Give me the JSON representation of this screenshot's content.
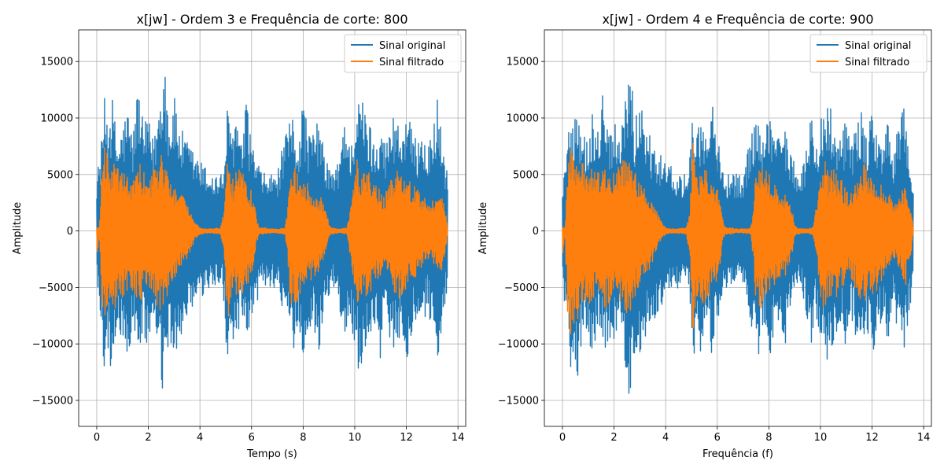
{
  "chart_data": [
    {
      "type": "line",
      "title": "x[jw] - Ordem 3 e Frequência de corte: 800",
      "xlabel": "Tempo (s)",
      "ylabel": "Amplitude",
      "xlim": [
        -0.7,
        14.3
      ],
      "ylim": [
        -17300,
        17800
      ],
      "xticks": [
        0,
        2,
        4,
        6,
        8,
        10,
        12,
        14
      ],
      "yticks": [
        -15000,
        -10000,
        -5000,
        0,
        5000,
        10000,
        15000
      ],
      "ytick_labels": [
        "−15000",
        "−10000",
        "−5000",
        "0",
        "5000",
        "10000",
        "15000"
      ],
      "grid": true,
      "legend_position": "top-right",
      "x_range": [
        0,
        13.6
      ],
      "series": [
        {
          "name": "Sinal original",
          "color": "#1f77b4",
          "envelope": {
            "x": [
              0,
              0.15,
              0.3,
              0.45,
              0.6,
              0.8,
              1.0,
              1.2,
              1.4,
              1.6,
              1.8,
              2.0,
              2.2,
              2.4,
              2.62,
              2.8,
              3.0,
              3.2,
              3.5,
              3.8,
              4.1,
              4.5,
              4.9,
              5.05,
              5.2,
              5.4,
              5.6,
              5.8,
              6.0,
              6.2,
              6.4,
              6.6,
              6.8,
              7.0,
              7.2,
              7.4,
              7.6,
              7.8,
              8.0,
              8.2,
              8.4,
              8.6,
              8.8,
              9.0,
              9.2,
              9.4,
              9.6,
              9.8,
              10.0,
              10.2,
              10.4,
              10.6,
              10.8,
              11.0,
              11.2,
              11.4,
              11.6,
              11.8,
              12.0,
              12.2,
              12.4,
              12.6,
              12.8,
              13.0,
              13.2,
              13.4,
              13.6
            ],
            "max": [
              5100,
              7000,
              11800,
              10500,
              12000,
              8000,
              9500,
              11000,
              8500,
              13300,
              9500,
              10000,
              8000,
              11500,
              16300,
              10000,
              12000,
              9500,
              8000,
              7000,
              6000,
              5100,
              5100,
              11000,
              9000,
              10800,
              7500,
              11500,
              8000,
              6500,
              5100,
              5100,
              5100,
              5100,
              7500,
              9000,
              10500,
              8000,
              12100,
              9000,
              8500,
              10500,
              7000,
              6000,
              5100,
              6500,
              11000,
              7500,
              10300,
              12200,
              11000,
              9500,
              8000,
              10600,
              7500,
              10000,
              11000,
              8500,
              11500,
              9000,
              8000,
              10000,
              6500,
              9500,
              11800,
              8000,
              5100
            ],
            "min": [
              -5000,
              -8000,
              -12500,
              -11000,
              -13000,
              -8500,
              -10000,
              -11500,
              -9000,
              -11000,
              -9500,
              -10500,
              -8500,
              -12000,
              -15700,
              -10500,
              -11800,
              -9500,
              -8500,
              -7000,
              -6000,
              -5000,
              -5000,
              -12400,
              -9000,
              -11700,
              -7500,
              -11500,
              -8000,
              -6500,
              -5000,
              -5000,
              -5000,
              -5000,
              -7500,
              -9000,
              -11000,
              -8000,
              -12000,
              -9000,
              -8500,
              -11000,
              -7000,
              -6000,
              -5000,
              -6500,
              -11000,
              -7500,
              -10500,
              -13000,
              -11000,
              -9500,
              -8000,
              -11500,
              -7500,
              -10000,
              -11000,
              -8500,
              -11800,
              -9000,
              -8000,
              -10500,
              -6500,
              -9500,
              -11700,
              -8000,
              -5000
            ]
          }
        },
        {
          "name": "Sinal filtrado",
          "color": "#ff7f0e",
          "envelope": {
            "x": [
              0,
              0.1,
              0.2,
              0.3,
              0.5,
              0.7,
              0.9,
              1.1,
              1.3,
              1.5,
              1.7,
              1.9,
              2.1,
              2.3,
              2.5,
              2.62,
              2.8,
              3.0,
              3.2,
              3.4,
              3.6,
              3.8,
              4.0,
              4.2,
              4.5,
              4.8,
              4.95,
              5.05,
              5.15,
              5.3,
              5.5,
              5.7,
              5.9,
              6.1,
              6.2,
              6.3,
              6.5,
              6.7,
              6.9,
              7.1,
              7.3,
              7.4,
              7.5,
              7.7,
              7.9,
              8.1,
              8.3,
              8.5,
              8.7,
              8.9,
              9.0,
              9.1,
              9.3,
              9.5,
              9.7,
              9.9,
              10.1,
              10.3,
              10.5,
              10.7,
              10.9,
              11.1,
              11.3,
              11.5,
              11.7,
              11.9,
              12.1,
              12.3,
              12.5,
              12.7,
              12.9,
              13.1,
              13.3,
              13.5,
              13.6
            ],
            "max": [
              400,
              300,
              6000,
              8000,
              6500,
              6300,
              5000,
              5500,
              4500,
              5200,
              6000,
              4800,
              5000,
              6000,
              7000,
              6500,
              5000,
              4000,
              3500,
              3000,
              2000,
              800,
              300,
              200,
              200,
              300,
              2000,
              8200,
              5800,
              4500,
              6000,
              5000,
              4000,
              3000,
              1000,
              300,
              300,
              200,
              200,
              200,
              300,
              2000,
              5500,
              5900,
              5000,
              4500,
              4000,
              3500,
              3000,
              2000,
              500,
              300,
              200,
              200,
              300,
              3000,
              6500,
              5000,
              5500,
              4500,
              4000,
              3000,
              4000,
              5000,
              6000,
              5000,
              4500,
              4000,
              3500,
              3000,
              2500,
              3000,
              4000,
              2000,
              300
            ],
            "min": [
              -2500,
              -400,
              -7000,
              -9200,
              -7500,
              -7000,
              -6000,
              -6000,
              -5000,
              -6000,
              -6500,
              -5500,
              -5500,
              -6500,
              -7500,
              -7000,
              -5500,
              -4500,
              -3500,
              -3000,
              -2000,
              -800,
              -300,
              -200,
              -200,
              -300,
              -2500,
              -9500,
              -6500,
              -5000,
              -6500,
              -5500,
              -4500,
              -3000,
              -1000,
              -300,
              -300,
              -200,
              -200,
              -200,
              -300,
              -2500,
              -6500,
              -6800,
              -5500,
              -5000,
              -4500,
              -4000,
              -3500,
              -2000,
              -500,
              -300,
              -200,
              -200,
              -300,
              -3500,
              -7000,
              -5500,
              -6000,
              -5000,
              -4500,
              -3500,
              -4500,
              -5500,
              -6500,
              -5500,
              -5000,
              -4500,
              -3500,
              -3000,
              -2500,
              -3000,
              -4500,
              -2000,
              -300
            ]
          }
        }
      ]
    },
    {
      "type": "line",
      "title": "x[jw] - Ordem 4 e Frequência de corte: 900",
      "xlabel": "Frequência (f)",
      "ylabel": "Amplitude",
      "xlim": [
        -0.7,
        14.3
      ],
      "ylim": [
        -17300,
        17800
      ],
      "xticks": [
        0,
        2,
        4,
        6,
        8,
        10,
        12,
        14
      ],
      "yticks": [
        -15000,
        -10000,
        -5000,
        0,
        5000,
        10000,
        15000
      ],
      "ytick_labels": [
        "−15000",
        "−10000",
        "−5000",
        "0",
        "5000",
        "10000",
        "15000"
      ],
      "grid": true,
      "legend_position": "top-right",
      "x_range": [
        0,
        13.6
      ],
      "series": [
        {
          "name": "Sinal original",
          "color": "#1f77b4",
          "envelope": {
            "x": [
              0,
              0.15,
              0.3,
              0.45,
              0.6,
              0.8,
              1.0,
              1.2,
              1.4,
              1.6,
              1.8,
              2.0,
              2.2,
              2.4,
              2.62,
              2.8,
              3.0,
              3.2,
              3.5,
              3.8,
              4.1,
              4.5,
              4.9,
              5.05,
              5.2,
              5.4,
              5.6,
              5.8,
              6.0,
              6.2,
              6.4,
              6.6,
              6.8,
              7.0,
              7.2,
              7.4,
              7.6,
              7.8,
              8.0,
              8.2,
              8.4,
              8.6,
              8.8,
              9.0,
              9.2,
              9.4,
              9.6,
              9.8,
              10.0,
              10.2,
              10.4,
              10.6,
              10.8,
              11.0,
              11.2,
              11.4,
              11.6,
              11.8,
              12.0,
              12.2,
              12.4,
              12.6,
              12.8,
              13.0,
              13.2,
              13.4,
              13.6
            ],
            "max": [
              5100,
              7000,
              11800,
              10500,
              12000,
              8000,
              9500,
              11000,
              8500,
              13300,
              9500,
              10000,
              8000,
              11500,
              16300,
              10000,
              12000,
              9500,
              8000,
              7000,
              6000,
              5100,
              5100,
              11000,
              9000,
              10800,
              7500,
              11500,
              8000,
              6500,
              5100,
              5100,
              5100,
              5100,
              7500,
              9000,
              10500,
              8000,
              12100,
              9000,
              8500,
              10500,
              7000,
              6000,
              5100,
              6500,
              11000,
              7500,
              10300,
              12200,
              11000,
              9500,
              8000,
              10600,
              7500,
              10000,
              11000,
              8500,
              11500,
              9000,
              8000,
              10000,
              6500,
              9500,
              11800,
              8000,
              5100
            ],
            "min": [
              -5000,
              -8000,
              -12500,
              -11000,
              -13000,
              -8500,
              -10000,
              -11500,
              -9000,
              -11000,
              -9500,
              -10500,
              -8500,
              -12000,
              -15700,
              -10500,
              -11800,
              -9500,
              -8500,
              -7000,
              -6000,
              -5000,
              -5000,
              -12400,
              -9000,
              -11700,
              -7500,
              -11500,
              -8000,
              -6500,
              -5000,
              -5000,
              -5000,
              -5000,
              -7500,
              -9000,
              -11000,
              -8000,
              -12000,
              -9000,
              -8500,
              -11000,
              -7000,
              -6000,
              -5000,
              -6500,
              -11000,
              -7500,
              -10500,
              -13000,
              -11000,
              -9500,
              -8000,
              -11500,
              -7500,
              -10000,
              -11000,
              -8500,
              -11800,
              -9000,
              -8000,
              -10500,
              -6500,
              -9500,
              -11700,
              -8000,
              -5000
            ]
          }
        },
        {
          "name": "Sinal filtrado",
          "color": "#ff7f0e",
          "envelope": {
            "x": [
              0,
              0.1,
              0.2,
              0.3,
              0.5,
              0.7,
              0.9,
              1.1,
              1.3,
              1.5,
              1.7,
              1.9,
              2.1,
              2.3,
              2.5,
              2.62,
              2.8,
              3.0,
              3.2,
              3.4,
              3.6,
              3.8,
              4.0,
              4.2,
              4.5,
              4.8,
              4.95,
              5.05,
              5.15,
              5.3,
              5.5,
              5.7,
              5.9,
              6.1,
              6.2,
              6.3,
              6.5,
              6.7,
              6.9,
              7.1,
              7.3,
              7.4,
              7.5,
              7.7,
              7.9,
              8.1,
              8.3,
              8.5,
              8.7,
              8.9,
              9.0,
              9.1,
              9.3,
              9.5,
              9.7,
              9.9,
              10.1,
              10.3,
              10.5,
              10.7,
              10.9,
              11.1,
              11.3,
              11.5,
              11.7,
              11.9,
              12.1,
              12.3,
              12.5,
              12.7,
              12.9,
              13.1,
              13.3,
              13.5,
              13.6
            ],
            "max": [
              400,
              300,
              6000,
              7500,
              6800,
              6500,
              5500,
              5800,
              5000,
              5500,
              6300,
              5000,
              5500,
              6300,
              7300,
              6800,
              5300,
              4300,
              3800,
              3200,
              2200,
              900,
              300,
              200,
              200,
              300,
              2200,
              8200,
              6000,
              4800,
              6300,
              5300,
              4300,
              3200,
              1100,
              300,
              300,
              200,
              200,
              200,
              300,
              2200,
              5800,
              6200,
              5300,
              4800,
              4300,
              3800,
              3200,
              2200,
              500,
              300,
              200,
              200,
              300,
              3200,
              6800,
              5300,
              5800,
              4800,
              4300,
              3200,
              4300,
              5300,
              6300,
              5300,
              4800,
              4300,
              3800,
              3200,
              2800,
              3200,
              4300,
              2200,
              300
            ],
            "min": [
              -2500,
              -400,
              -7500,
              -9800,
              -8000,
              -7500,
              -6500,
              -6500,
              -5500,
              -6500,
              -7000,
              -6000,
              -6000,
              -7000,
              -8000,
              -7500,
              -6000,
              -5000,
              -4000,
              -3300,
              -2200,
              -900,
              -300,
              -200,
              -200,
              -300,
              -2800,
              -9800,
              -7000,
              -5500,
              -7000,
              -6000,
              -5000,
              -3300,
              -1100,
              -300,
              -300,
              -200,
              -200,
              -200,
              -300,
              -2800,
              -7000,
              -7300,
              -6000,
              -5500,
              -5000,
              -4300,
              -3800,
              -2200,
              -500,
              -300,
              -200,
              -200,
              -300,
              -3800,
              -7500,
              -6000,
              -6500,
              -5500,
              -5000,
              -3800,
              -5000,
              -6000,
              -7000,
              -6000,
              -5500,
              -5000,
              -3800,
              -3300,
              -2800,
              -3300,
              -5000,
              -2200,
              -300
            ]
          }
        }
      ]
    }
  ]
}
